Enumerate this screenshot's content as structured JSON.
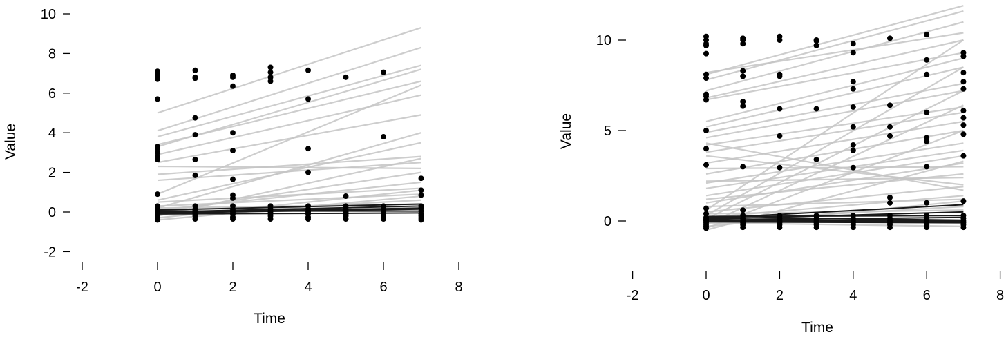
{
  "charts": [
    {
      "type": "scatter",
      "xlabel": "Time",
      "ylabel": "Value",
      "xlim": [
        -2,
        8
      ],
      "ylim": [
        -2,
        10
      ],
      "xticks": [
        -2,
        0,
        2,
        4,
        6,
        8
      ],
      "yticks": [
        -2,
        0,
        2,
        4,
        6,
        8,
        10
      ],
      "xtick_labels": [
        "-2",
        "0",
        "2",
        "4",
        "6",
        "8"
      ],
      "ytick_labels": [
        "-2",
        "0",
        "2",
        "4",
        "6",
        "8",
        "10"
      ],
      "grid": false,
      "legend": "none",
      "point_color": "#000000",
      "line_color_light": "#c4c4c4",
      "line_color_dark": "#1a1a1a",
      "fitted_lines_light": [
        [
          0,
          5.0,
          7,
          9.3
        ],
        [
          0,
          4.1,
          7,
          8.3
        ],
        [
          0,
          3.8,
          7,
          7.4
        ],
        [
          0,
          3.3,
          7,
          7.2
        ],
        [
          0,
          3.4,
          7,
          6.6
        ],
        [
          0,
          2.9,
          7,
          5.9
        ],
        [
          0,
          2.5,
          7,
          4.9
        ],
        [
          0,
          2.3,
          7,
          2.2
        ],
        [
          0,
          1.9,
          7,
          2.8
        ],
        [
          0,
          1.6,
          7,
          2.5
        ],
        [
          0,
          0.9,
          7,
          6.4
        ],
        [
          0,
          0.6,
          7,
          3.5
        ],
        [
          0,
          0.2,
          7,
          4.0
        ],
        [
          0,
          0.0,
          7,
          2.0
        ],
        [
          0,
          0.1,
          7,
          1.5
        ],
        [
          0,
          -0.2,
          7,
          2.7
        ],
        [
          0,
          -0.3,
          7,
          1.1
        ],
        [
          0,
          -0.4,
          7,
          0.8
        ],
        [
          0,
          0.5,
          7,
          1.2
        ],
        [
          0,
          0.3,
          7,
          0.9
        ],
        [
          0,
          -0.1,
          7,
          0.6
        ],
        [
          0,
          0.2,
          7,
          0.4
        ]
      ],
      "fitted_lines_dark": [
        [
          0,
          0.0,
          7,
          0.3
        ],
        [
          0,
          -0.05,
          7,
          0.15
        ],
        [
          0,
          0.05,
          7,
          0.05
        ],
        [
          0,
          -0.1,
          7,
          -0.05
        ],
        [
          0,
          0.1,
          7,
          0.4
        ],
        [
          0,
          -0.02,
          7,
          0.2
        ]
      ],
      "points": [
        [
          0,
          7.1
        ],
        [
          0,
          6.95
        ],
        [
          0,
          6.8
        ],
        [
          0,
          6.7
        ],
        [
          0,
          5.7
        ],
        [
          0,
          3.3
        ],
        [
          0,
          3.2
        ],
        [
          0,
          3.0
        ],
        [
          0,
          2.8
        ],
        [
          0,
          2.65
        ],
        [
          0,
          0.9
        ],
        [
          0,
          0.3
        ],
        [
          0,
          0.2
        ],
        [
          0,
          0.1
        ],
        [
          0,
          0.0
        ],
        [
          0,
          -0.1
        ],
        [
          0,
          -0.2
        ],
        [
          0,
          -0.3
        ],
        [
          0,
          -0.4
        ],
        [
          0,
          0.05
        ],
        [
          0,
          -0.05
        ],
        [
          1,
          7.15
        ],
        [
          1,
          6.8
        ],
        [
          1,
          6.75
        ],
        [
          1,
          4.75
        ],
        [
          1,
          3.9
        ],
        [
          1,
          2.65
        ],
        [
          1,
          1.85
        ],
        [
          1,
          0.3
        ],
        [
          1,
          0.15
        ],
        [
          1,
          0.0
        ],
        [
          1,
          -0.1
        ],
        [
          1,
          -0.2
        ],
        [
          1,
          -0.35
        ],
        [
          1,
          0.1
        ],
        [
          1,
          -0.05
        ],
        [
          2,
          6.9
        ],
        [
          2,
          6.8
        ],
        [
          2,
          6.35
        ],
        [
          2,
          4.0
        ],
        [
          2,
          3.1
        ],
        [
          2,
          1.65
        ],
        [
          2,
          0.85
        ],
        [
          2,
          0.7
        ],
        [
          2,
          0.3
        ],
        [
          2,
          0.15
        ],
        [
          2,
          0.0
        ],
        [
          2,
          -0.1
        ],
        [
          2,
          -0.25
        ],
        [
          2,
          -0.35
        ],
        [
          2,
          0.05
        ],
        [
          3,
          7.3
        ],
        [
          3,
          7.05
        ],
        [
          3,
          6.8
        ],
        [
          3,
          6.6
        ],
        [
          3,
          0.3
        ],
        [
          3,
          0.15
        ],
        [
          3,
          0.0
        ],
        [
          3,
          -0.1
        ],
        [
          3,
          -0.2
        ],
        [
          3,
          -0.35
        ],
        [
          3,
          0.05
        ],
        [
          4,
          7.15
        ],
        [
          4,
          5.7
        ],
        [
          4,
          3.2
        ],
        [
          4,
          2.0
        ],
        [
          4,
          0.3
        ],
        [
          4,
          0.15
        ],
        [
          4,
          0.0
        ],
        [
          4,
          -0.1
        ],
        [
          4,
          -0.25
        ],
        [
          4,
          -0.35
        ],
        [
          5,
          6.8
        ],
        [
          5,
          0.8
        ],
        [
          5,
          0.3
        ],
        [
          5,
          0.15
        ],
        [
          5,
          0.0
        ],
        [
          5,
          -0.1
        ],
        [
          5,
          -0.2
        ],
        [
          5,
          -0.35
        ],
        [
          6,
          7.05
        ],
        [
          6,
          3.8
        ],
        [
          6,
          0.3
        ],
        [
          6,
          0.2
        ],
        [
          6,
          0.05
        ],
        [
          6,
          -0.1
        ],
        [
          6,
          -0.2
        ],
        [
          6,
          -0.35
        ],
        [
          7,
          1.7
        ],
        [
          7,
          1.1
        ],
        [
          7,
          0.85
        ],
        [
          7,
          0.3
        ],
        [
          7,
          0.2
        ],
        [
          7,
          0.05
        ],
        [
          7,
          -0.1
        ],
        [
          7,
          -0.2
        ],
        [
          7,
          -0.3
        ],
        [
          7,
          -0.4
        ]
      ]
    },
    {
      "type": "scatter",
      "xlabel": "Time",
      "ylabel": "Value",
      "xlim": [
        -2,
        8
      ],
      "ylim": [
        0,
        10
      ],
      "xticks": [
        -2,
        0,
        2,
        4,
        6,
        8
      ],
      "yticks": [
        0,
        5,
        10
      ],
      "xtick_labels": [
        "-2",
        "0",
        "2",
        "4",
        "6",
        "8"
      ],
      "ytick_labels": [
        "0",
        "5",
        "10"
      ],
      "grid": false,
      "legend": "none",
      "point_color": "#000000",
      "line_color_light": "#c4c4c4",
      "line_color_dark": "#1a1a1a",
      "fitted_lines_light": [
        [
          0,
          8.1,
          7,
          11.9
        ],
        [
          0,
          7.8,
          7,
          11.6
        ],
        [
          0,
          7.2,
          7,
          11.0
        ],
        [
          0,
          8.2,
          7,
          10.4
        ],
        [
          0,
          6.8,
          7,
          10.0
        ],
        [
          0,
          6.7,
          7,
          9.3
        ],
        [
          0,
          5.5,
          7,
          9.0
        ],
        [
          0,
          5.2,
          7,
          8.5
        ],
        [
          0,
          4.9,
          7,
          7.6
        ],
        [
          0,
          4.6,
          7,
          7.2
        ],
        [
          0,
          4.2,
          7,
          6.3
        ],
        [
          0,
          3.8,
          7,
          6.0
        ],
        [
          0,
          3.2,
          7,
          5.5
        ],
        [
          0,
          2.6,
          7,
          5.0
        ],
        [
          0,
          2.1,
          7,
          4.3
        ],
        [
          0,
          1.8,
          7,
          3.9
        ],
        [
          0,
          1.4,
          7,
          3.6
        ],
        [
          0,
          1.0,
          7,
          3.2
        ],
        [
          0,
          0.6,
          7,
          10.0
        ],
        [
          0,
          0.3,
          7,
          8.5
        ],
        [
          0,
          0.1,
          7,
          7.2
        ],
        [
          0,
          -0.2,
          7,
          6.4
        ],
        [
          0,
          -0.4,
          7,
          5.0
        ],
        [
          0,
          2.2,
          7,
          2.4
        ],
        [
          0,
          2.9,
          7,
          3.0
        ],
        [
          0,
          4.3,
          7,
          1.7
        ],
        [
          0,
          3.6,
          7,
          2.0
        ],
        [
          0,
          1.2,
          7,
          2.6
        ],
        [
          0,
          0.5,
          7,
          1.9
        ],
        [
          0,
          0.2,
          7,
          1.4
        ],
        [
          0,
          -0.3,
          7,
          1.1
        ],
        [
          0,
          -0.5,
          7,
          3.3
        ],
        [
          0,
          0.8,
          7,
          1.2
        ],
        [
          0,
          0.0,
          7,
          0.8
        ],
        [
          0,
          0.4,
          7,
          0.6
        ],
        [
          0,
          -0.1,
          7,
          -0.3
        ]
      ],
      "fitted_lines_dark": [
        [
          0,
          0.15,
          7,
          0.9
        ],
        [
          0,
          0.1,
          7,
          0.5
        ],
        [
          0,
          0.05,
          7,
          0.2
        ],
        [
          0,
          0.0,
          7,
          0.0
        ],
        [
          0,
          0.2,
          7,
          0.05
        ],
        [
          0,
          -0.05,
          7,
          -0.1
        ],
        [
          0,
          0.25,
          7,
          0.3
        ]
      ],
      "points": [
        [
          0,
          10.2
        ],
        [
          0,
          10.0
        ],
        [
          0,
          9.8
        ],
        [
          0,
          9.7
        ],
        [
          0,
          9.25
        ],
        [
          0,
          8.1
        ],
        [
          0,
          7.9
        ],
        [
          0,
          7.0
        ],
        [
          0,
          6.9
        ],
        [
          0,
          6.7
        ],
        [
          0,
          5.0
        ],
        [
          0,
          4.0
        ],
        [
          0,
          3.1
        ],
        [
          0,
          0.7
        ],
        [
          0,
          0.4
        ],
        [
          0,
          0.2
        ],
        [
          0,
          0.1
        ],
        [
          0,
          0.0
        ],
        [
          0,
          -0.1
        ],
        [
          0,
          -0.2
        ],
        [
          0,
          -0.3
        ],
        [
          0,
          -0.4
        ],
        [
          0,
          0.05
        ],
        [
          1,
          10.1
        ],
        [
          1,
          10.0
        ],
        [
          1,
          9.8
        ],
        [
          1,
          8.3
        ],
        [
          1,
          8.0
        ],
        [
          1,
          6.6
        ],
        [
          1,
          6.35
        ],
        [
          1,
          3.0
        ],
        [
          1,
          0.6
        ],
        [
          1,
          0.3
        ],
        [
          1,
          0.15
        ],
        [
          1,
          0.0
        ],
        [
          1,
          -0.1
        ],
        [
          1,
          -0.2
        ],
        [
          1,
          -0.35
        ],
        [
          2,
          10.2
        ],
        [
          2,
          10.0
        ],
        [
          2,
          8.1
        ],
        [
          2,
          8.0
        ],
        [
          2,
          6.2
        ],
        [
          2,
          4.7
        ],
        [
          2,
          2.95
        ],
        [
          2,
          0.3
        ],
        [
          2,
          0.15
        ],
        [
          2,
          0.0
        ],
        [
          2,
          -0.1
        ],
        [
          2,
          -0.2
        ],
        [
          2,
          -0.35
        ],
        [
          3,
          10.0
        ],
        [
          3,
          9.95
        ],
        [
          3,
          9.7
        ],
        [
          3,
          6.2
        ],
        [
          3,
          3.4
        ],
        [
          3,
          0.3
        ],
        [
          3,
          0.15
        ],
        [
          3,
          0.0
        ],
        [
          3,
          -0.1
        ],
        [
          3,
          -0.2
        ],
        [
          3,
          -0.35
        ],
        [
          4,
          9.8
        ],
        [
          4,
          9.3
        ],
        [
          4,
          7.7
        ],
        [
          4,
          7.3
        ],
        [
          4,
          6.3
        ],
        [
          4,
          5.2
        ],
        [
          4,
          4.2
        ],
        [
          4,
          3.9
        ],
        [
          4,
          2.95
        ],
        [
          4,
          0.3
        ],
        [
          4,
          0.15
        ],
        [
          4,
          0.0
        ],
        [
          4,
          -0.1
        ],
        [
          4,
          -0.2
        ],
        [
          4,
          -0.35
        ],
        [
          5,
          10.1
        ],
        [
          5,
          6.4
        ],
        [
          5,
          5.2
        ],
        [
          5,
          4.7
        ],
        [
          5,
          1.3
        ],
        [
          5,
          1.0
        ],
        [
          5,
          0.3
        ],
        [
          5,
          0.15
        ],
        [
          5,
          0.0
        ],
        [
          5,
          -0.1
        ],
        [
          5,
          -0.2
        ],
        [
          5,
          -0.35
        ],
        [
          6,
          10.3
        ],
        [
          6,
          8.9
        ],
        [
          6,
          8.1
        ],
        [
          6,
          6.0
        ],
        [
          6,
          4.6
        ],
        [
          6,
          4.4
        ],
        [
          6,
          3.0
        ],
        [
          6,
          1.0
        ],
        [
          6,
          0.3
        ],
        [
          6,
          0.15
        ],
        [
          6,
          0.0
        ],
        [
          6,
          -0.1
        ],
        [
          6,
          -0.2
        ],
        [
          6,
          -0.35
        ],
        [
          7,
          9.3
        ],
        [
          7,
          9.1
        ],
        [
          7,
          8.2
        ],
        [
          7,
          7.7
        ],
        [
          7,
          7.3
        ],
        [
          7,
          6.1
        ],
        [
          7,
          5.7
        ],
        [
          7,
          5.3
        ],
        [
          7,
          4.8
        ],
        [
          7,
          3.6
        ],
        [
          7,
          1.1
        ],
        [
          7,
          0.3
        ],
        [
          7,
          0.15
        ],
        [
          7,
          0.0
        ],
        [
          7,
          -0.1
        ],
        [
          7,
          -0.2
        ],
        [
          7,
          -0.35
        ]
      ]
    }
  ]
}
